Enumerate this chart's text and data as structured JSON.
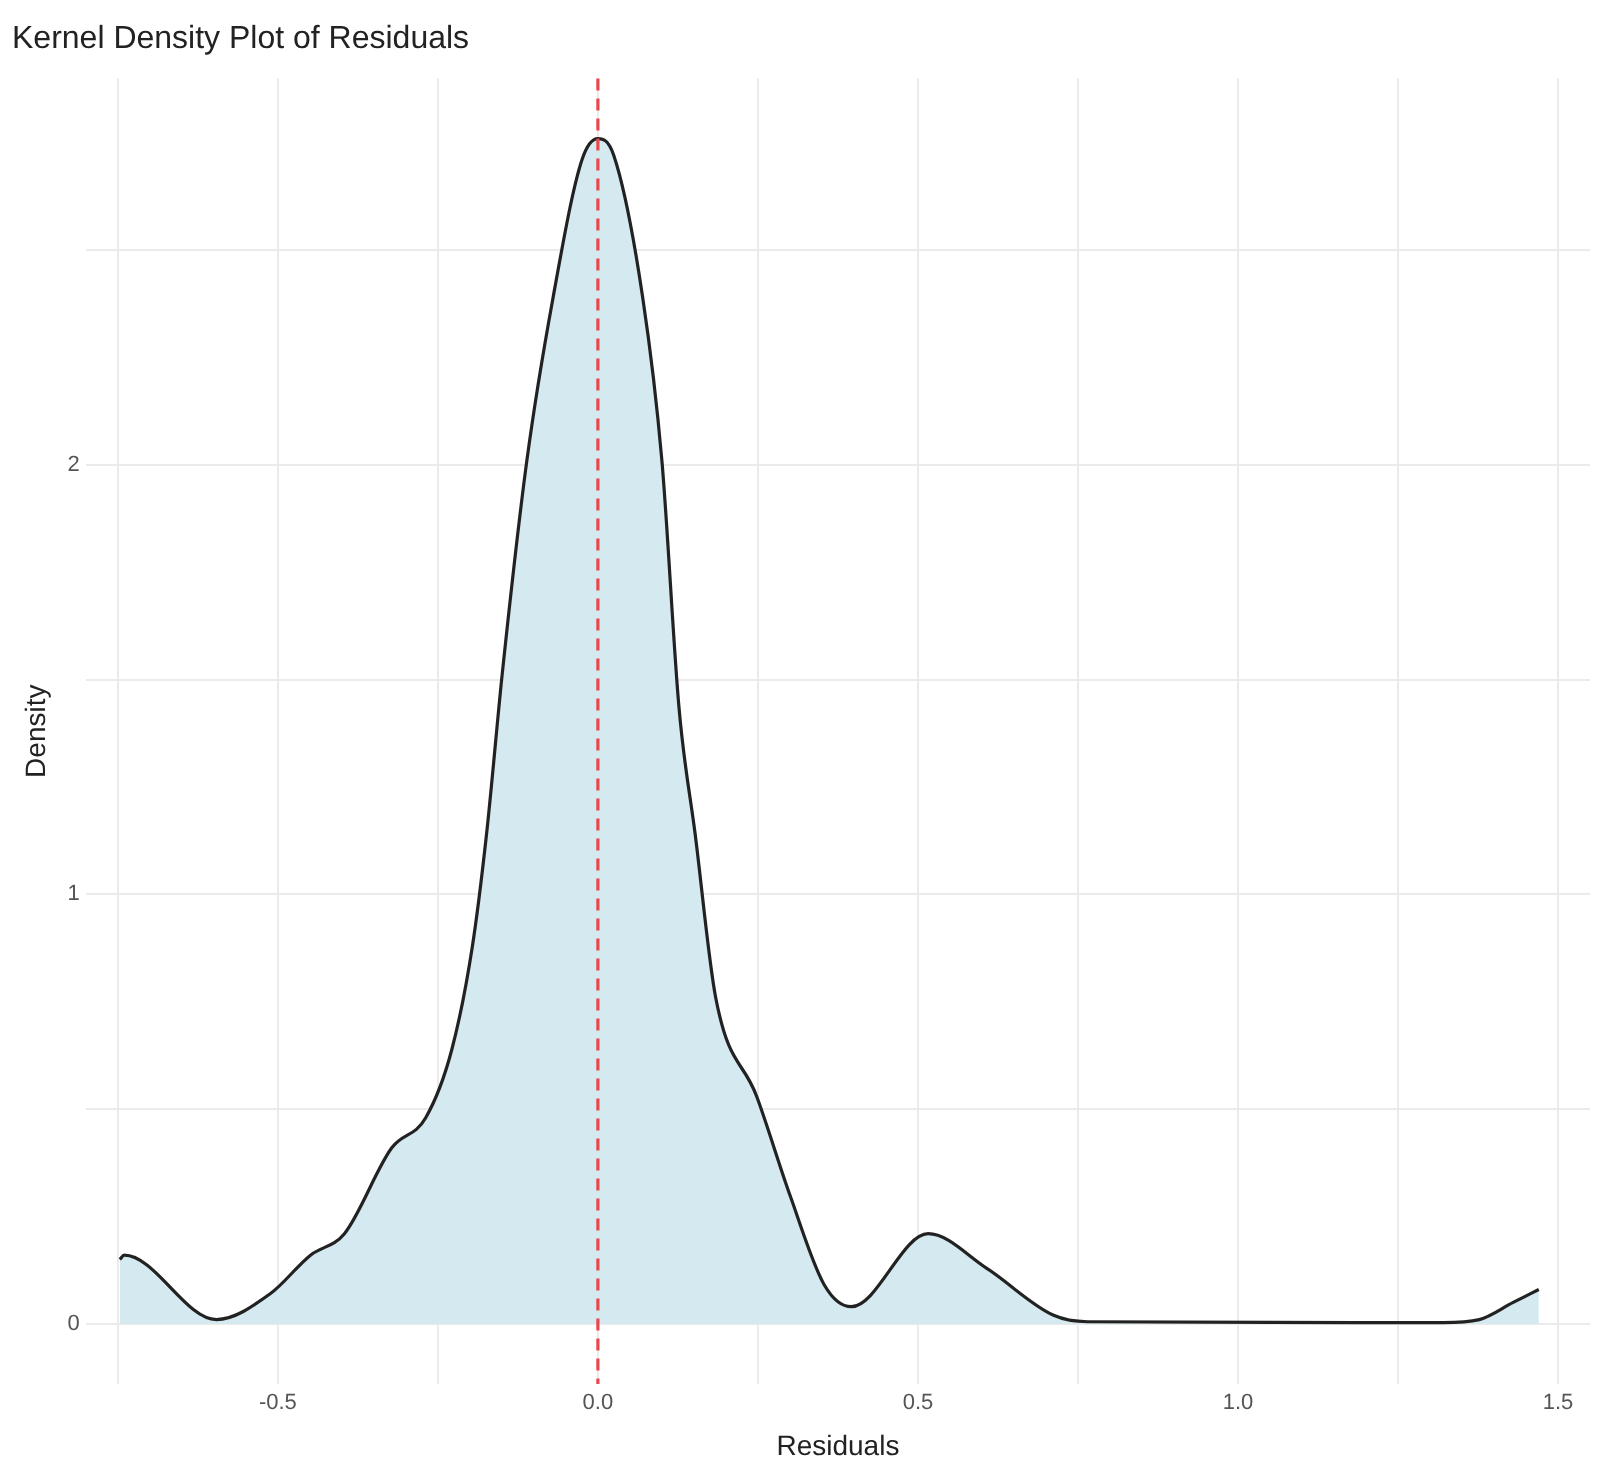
{
  "chart_data": {
    "type": "area",
    "title": "Kernel Density Plot of Residuals",
    "xlabel": "Residuals",
    "ylabel": "Density",
    "series": [
      {
        "color": "#d5e9f0",
        "x": [
          -0.747,
          -0.74,
          -0.596,
          -0.512,
          -0.449,
          -0.396,
          -0.322,
          -0.269,
          -0.228,
          -0.196,
          -0.174,
          -0.149,
          -0.111,
          -0.07,
          -0.025,
          0,
          0.025,
          0.07,
          0.1,
          0.127,
          0.152,
          0.184,
          0.248,
          0.3,
          0.354,
          0.396,
          0.516,
          0.607,
          0.712,
          0.765,
          1.32,
          1.377,
          1.43,
          1.47
        ],
        "values": [
          0.15,
          0.16,
          0.01,
          0.07,
          0.16,
          0.21,
          0.41,
          0.48,
          0.64,
          0.88,
          1.14,
          1.52,
          2.01,
          2.39,
          2.71,
          2.76,
          2.72,
          2.39,
          2.01,
          1.43,
          1.14,
          0.76,
          0.53,
          0.3,
          0.09,
          0.04,
          0.21,
          0.13,
          0.02,
          0.005,
          0.003,
          0.01,
          0.05,
          0.08
        ]
      }
    ],
    "ref_lines": [
      {
        "axis": "x",
        "value": 0,
        "color": "#e8474c",
        "line_style": "dashed"
      }
    ],
    "xlim": [
      -0.8,
      1.55
    ],
    "ylim": [
      -0.14,
      2.9
    ],
    "xticks": [
      {
        "value": -0.75,
        "label": null
      },
      -0.5,
      {
        "value": -0.25,
        "label": null
      },
      {
        "value": 0,
        "label": "0.0"
      },
      {
        "value": 0.25,
        "label": null
      },
      0.5,
      {
        "value": 0.75,
        "label": null
      },
      {
        "value": 1,
        "label": "1.0"
      },
      {
        "value": 1.25,
        "label": null
      },
      1.5
    ],
    "yticks": [
      0,
      {
        "value": 0.5,
        "label": null
      },
      1,
      {
        "value": 1.5,
        "label": null
      },
      2,
      {
        "value": 2.5,
        "label": null
      }
    ],
    "grid": true,
    "marker": "none",
    "line_style": "solid"
  }
}
